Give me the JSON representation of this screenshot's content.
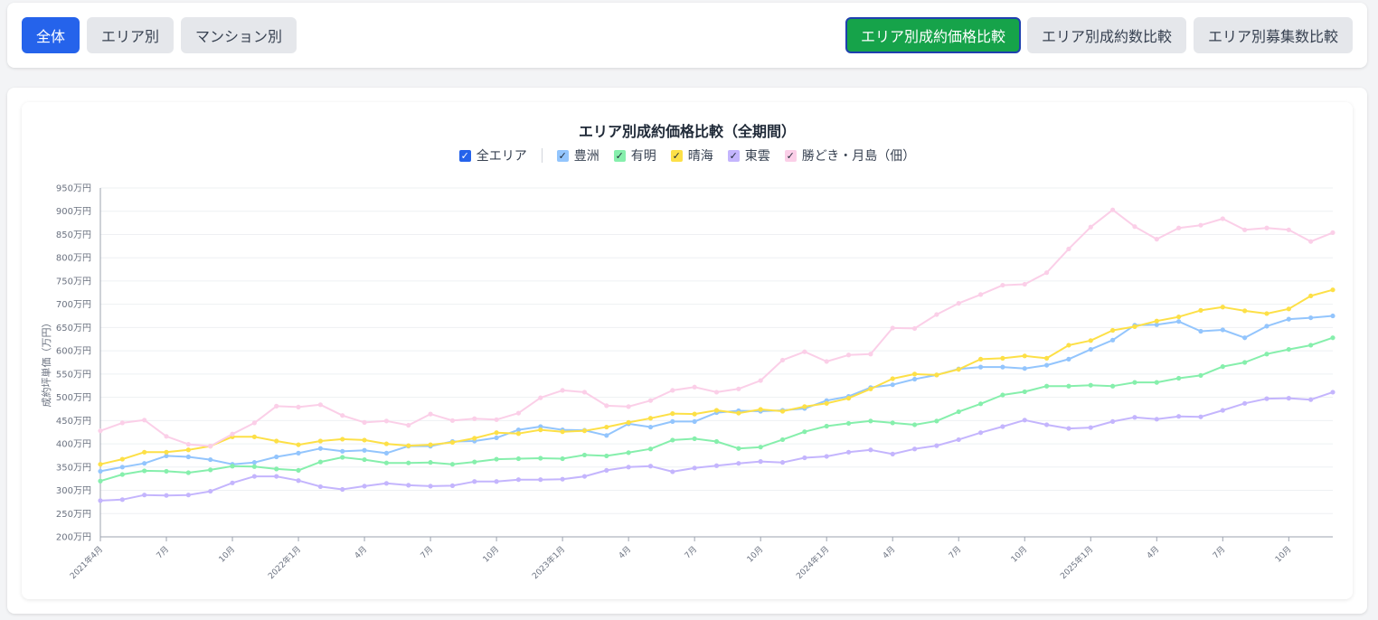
{
  "toolbar": {
    "left_buttons": [
      "全体",
      "エリア別",
      "マンション別"
    ],
    "right_buttons": [
      "エリア別成約価格比較",
      "エリア別成約数比較",
      "エリア別募集数比較"
    ],
    "active_left": "全体",
    "active_right": "エリア別成約価格比較"
  },
  "legend": {
    "all_label": "全エリア",
    "items": [
      {
        "name": "豊洲",
        "color": "#93c5fd"
      },
      {
        "name": "有明",
        "color": "#86efac"
      },
      {
        "name": "晴海",
        "color": "#fde047"
      },
      {
        "name": "東雲",
        "color": "#c4b5fd"
      },
      {
        "name": "勝どき・月島（佃）",
        "color": "#fbcfe8"
      }
    ]
  },
  "chart_data": {
    "type": "line",
    "title": "エリア別成約価格比較（全期間）",
    "ylabel": "成約坪単価（万円）",
    "ylim": [
      200,
      950
    ],
    "yticks": [
      "200万円",
      "250万円",
      "300万円",
      "350万円",
      "400万円",
      "450万円",
      "500万円",
      "550万円",
      "600万円",
      "650万円",
      "700万円",
      "750万円",
      "800万円",
      "850万円",
      "900万円",
      "950万円"
    ],
    "xticks": [
      {
        "i": 0,
        "label": "2021年4月"
      },
      {
        "i": 3,
        "label": "7月"
      },
      {
        "i": 6,
        "label": "10月"
      },
      {
        "i": 9,
        "label": "2022年1月"
      },
      {
        "i": 12,
        "label": "4月"
      },
      {
        "i": 15,
        "label": "7月"
      },
      {
        "i": 18,
        "label": "10月"
      },
      {
        "i": 21,
        "label": "2023年1月"
      },
      {
        "i": 24,
        "label": "4月"
      },
      {
        "i": 27,
        "label": "7月"
      },
      {
        "i": 30,
        "label": "10月"
      },
      {
        "i": 33,
        "label": "2024年1月"
      },
      {
        "i": 36,
        "label": "4月"
      },
      {
        "i": 39,
        "label": "7月"
      },
      {
        "i": 42,
        "label": "10月"
      },
      {
        "i": 45,
        "label": "2025年1月"
      },
      {
        "i": 48,
        "label": "4月"
      },
      {
        "i": 51,
        "label": "7月"
      },
      {
        "i": 54,
        "label": "10月"
      }
    ],
    "x_count": 57,
    "grid": true,
    "series": [
      {
        "name": "豊洲",
        "color": "#93c5fd",
        "values": [
          341,
          350,
          358,
          374,
          372,
          366,
          356,
          360,
          372,
          380,
          390,
          384,
          386,
          380,
          395,
          395,
          405,
          406,
          413,
          430,
          437,
          430,
          429,
          418,
          443,
          436,
          448,
          448,
          467,
          471,
          470,
          472,
          476,
          493,
          502,
          521,
          527,
          539,
          548,
          561,
          565,
          565,
          562,
          569,
          582,
          603,
          623,
          655,
          656,
          663,
          642,
          645,
          628,
          653,
          668,
          671,
          675
        ]
      },
      {
        "name": "有明",
        "color": "#86efac",
        "values": [
          320,
          334,
          342,
          341,
          338,
          344,
          352,
          351,
          346,
          343,
          361,
          371,
          366,
          359,
          359,
          360,
          356,
          361,
          367,
          368,
          369,
          368,
          376,
          374,
          381,
          389,
          408,
          411,
          405,
          390,
          393,
          409,
          426,
          438,
          444,
          449,
          445,
          441,
          449,
          469,
          486,
          505,
          512,
          524,
          524,
          526,
          524,
          532,
          532,
          541,
          547,
          566,
          575,
          593,
          603,
          612,
          628
        ]
      },
      {
        "name": "晴海",
        "color": "#fde047",
        "values": [
          356,
          367,
          382,
          382,
          387,
          395,
          415,
          415,
          406,
          398,
          406,
          410,
          408,
          400,
          396,
          398,
          403,
          412,
          424,
          422,
          430,
          426,
          428,
          436,
          446,
          455,
          465,
          464,
          472,
          466,
          474,
          470,
          480,
          487,
          498,
          518,
          540,
          550,
          548,
          560,
          582,
          584,
          589,
          584,
          612,
          622,
          644,
          652,
          664,
          673,
          687,
          694,
          686,
          680,
          690,
          718,
          731
        ]
      },
      {
        "name": "東雲",
        "color": "#c4b5fd",
        "values": [
          278,
          280,
          290,
          289,
          290,
          298,
          316,
          330,
          330,
          321,
          308,
          302,
          309,
          315,
          311,
          309,
          310,
          319,
          319,
          323,
          323,
          324,
          330,
          343,
          350,
          352,
          340,
          348,
          353,
          358,
          362,
          360,
          370,
          373,
          382,
          387,
          378,
          389,
          396,
          409,
          424,
          437,
          451,
          441,
          433,
          435,
          448,
          457,
          453,
          459,
          458,
          472,
          487,
          497,
          498,
          495,
          511
        ]
      },
      {
        "name": "勝どき・月島（佃）",
        "color": "#fbcfe8",
        "values": [
          428,
          445,
          451,
          416,
          399,
          395,
          421,
          445,
          481,
          479,
          484,
          461,
          446,
          449,
          440,
          464,
          450,
          454,
          452,
          466,
          499,
          515,
          511,
          482,
          480,
          493,
          515,
          522,
          511,
          518,
          536,
          580,
          598,
          577,
          591,
          593,
          649,
          648,
          678,
          702,
          721,
          741,
          743,
          768,
          819,
          866,
          903,
          867,
          840,
          864,
          870,
          884,
          860,
          864,
          860,
          835,
          854
        ]
      }
    ]
  }
}
